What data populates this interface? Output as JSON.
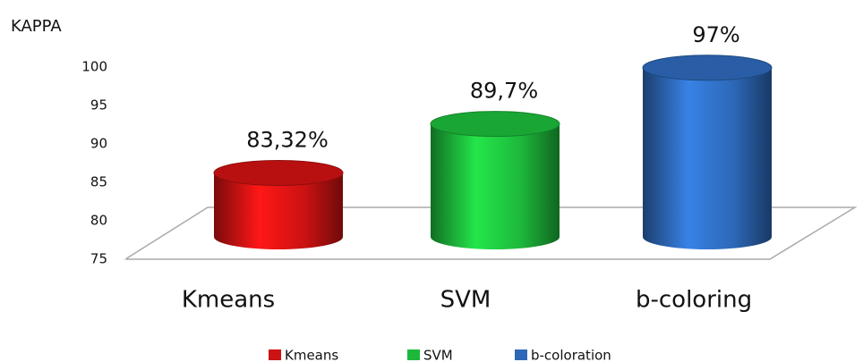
{
  "chart_data": {
    "type": "bar3d",
    "y_label": "KAPPA",
    "categories": [
      "Kmeans",
      "SVM",
      "b-coloring"
    ],
    "values": [
      83.32,
      89.7,
      97
    ],
    "value_labels": [
      "83,32%",
      "89,7%",
      "97%"
    ],
    "colors": [
      "#cc1212",
      "#1db83b",
      "#2d68b8"
    ],
    "legend": [
      "Kmeans",
      "SVM",
      "b-coloration"
    ],
    "ylim": [
      75,
      100
    ],
    "yticks": [
      75,
      80,
      85,
      90,
      95,
      100
    ]
  }
}
